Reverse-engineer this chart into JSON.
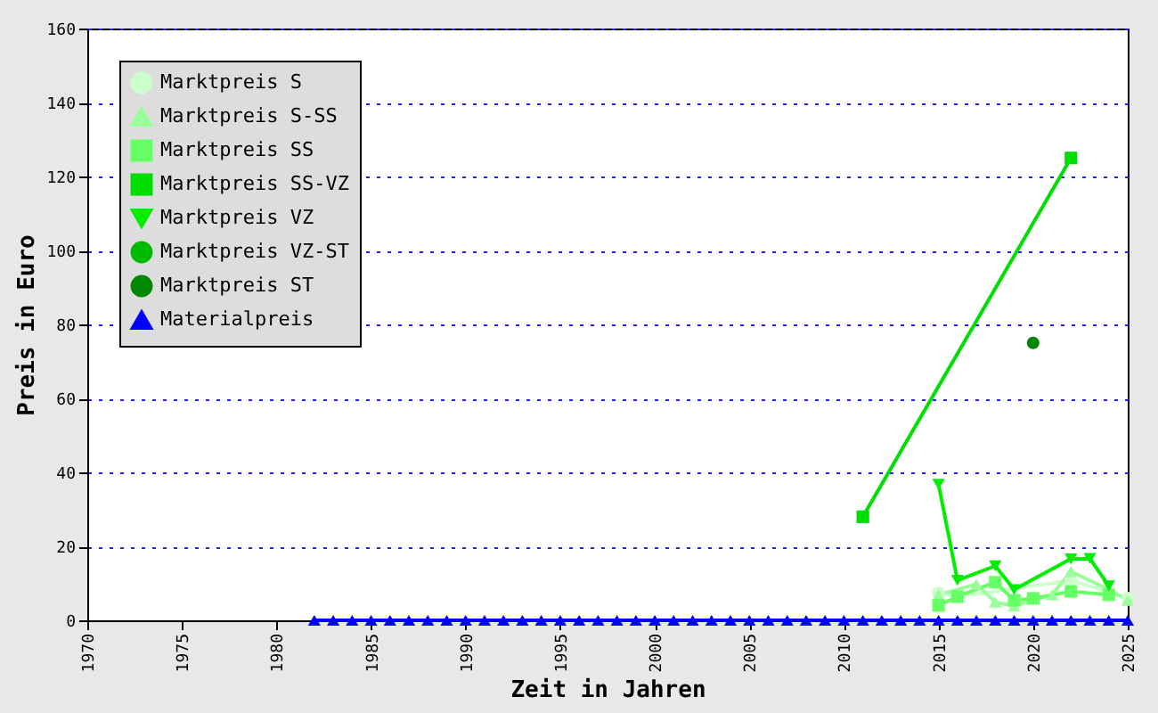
{
  "chart_data": {
    "type": "line",
    "xlabel": "Zeit in Jahren",
    "ylabel": "Preis in Euro",
    "xlim": [
      1970,
      2025
    ],
    "ylim": [
      0,
      160
    ],
    "xticks": [
      1970,
      1975,
      1980,
      1985,
      1990,
      1995,
      2000,
      2005,
      2010,
      2015,
      2020,
      2025
    ],
    "yticks": [
      0,
      20,
      40,
      60,
      80,
      100,
      120,
      140,
      160
    ],
    "grid": "y",
    "legend": "top left",
    "series": [
      {
        "name": "Marktpreis S",
        "color": "#ccffcc",
        "marker": "circle",
        "x": [
          2015,
          2016,
          2022,
          2025
        ],
        "values": [
          7.4,
          6.4,
          10.8,
          6
        ]
      },
      {
        "name": "Marktpreis S-SS",
        "color": "#99ff99",
        "marker": "triangle",
        "x": [
          2015,
          2017,
          2018,
          2019,
          2021,
          2022,
          2024,
          2025
        ],
        "values": [
          6.9,
          9.8,
          4.9,
          3.9,
          6.9,
          13.2,
          8.3,
          5.4
        ]
      },
      {
        "name": "Marktpreis SS",
        "color": "#66ff66",
        "marker": "square",
        "x": [
          2015,
          2016,
          2018,
          2019,
          2020,
          2022,
          2024
        ],
        "values": [
          4,
          6.4,
          10.3,
          5.4,
          5.9,
          7.8,
          6.9
        ]
      },
      {
        "name": "Marktpreis SS-VZ",
        "color": "#00dd00",
        "marker": "square",
        "x": [
          2011,
          2022
        ],
        "values": [
          28,
          125
        ]
      },
      {
        "name": "Marktpreis VZ",
        "color": "#00ee00",
        "marker": "triangle-down",
        "x": [
          2015,
          2016,
          2018,
          2019,
          2022,
          2023,
          2024
        ],
        "values": [
          36.8,
          10.8,
          14.7,
          8.3,
          16.6,
          16.7,
          9.3
        ]
      },
      {
        "name": "Marktpreis VZ-ST",
        "color": "#00bb00",
        "marker": "circle"
      },
      {
        "name": "Marktpreis ST",
        "color": "#008800",
        "marker": "circle",
        "x": [
          2020
        ],
        "values": [
          75
        ]
      },
      {
        "name": "Materialpreis",
        "color": "#0000ff",
        "marker": "triangle",
        "x": [
          1982,
          1983,
          1984,
          1985,
          1986,
          1987,
          1988,
          1989,
          1990,
          1991,
          1992,
          1993,
          1994,
          1995,
          1996,
          1997,
          1998,
          1999,
          2000,
          2001,
          2002,
          2003,
          2004,
          2005,
          2006,
          2007,
          2008,
          2009,
          2010,
          2011,
          2012,
          2013,
          2014,
          2015,
          2016,
          2017,
          2018,
          2019,
          2020,
          2021,
          2022,
          2023,
          2024,
          2025
        ],
        "values": [
          0,
          0,
          0,
          0,
          0,
          0,
          0,
          0,
          0,
          0,
          0,
          0,
          0,
          0,
          0,
          0,
          0,
          0,
          0,
          0,
          0,
          0,
          0,
          0,
          0,
          0,
          0,
          0,
          0,
          0,
          0,
          0,
          0,
          0,
          0,
          0,
          0,
          0,
          0,
          0,
          0,
          0,
          0,
          0
        ]
      }
    ]
  }
}
